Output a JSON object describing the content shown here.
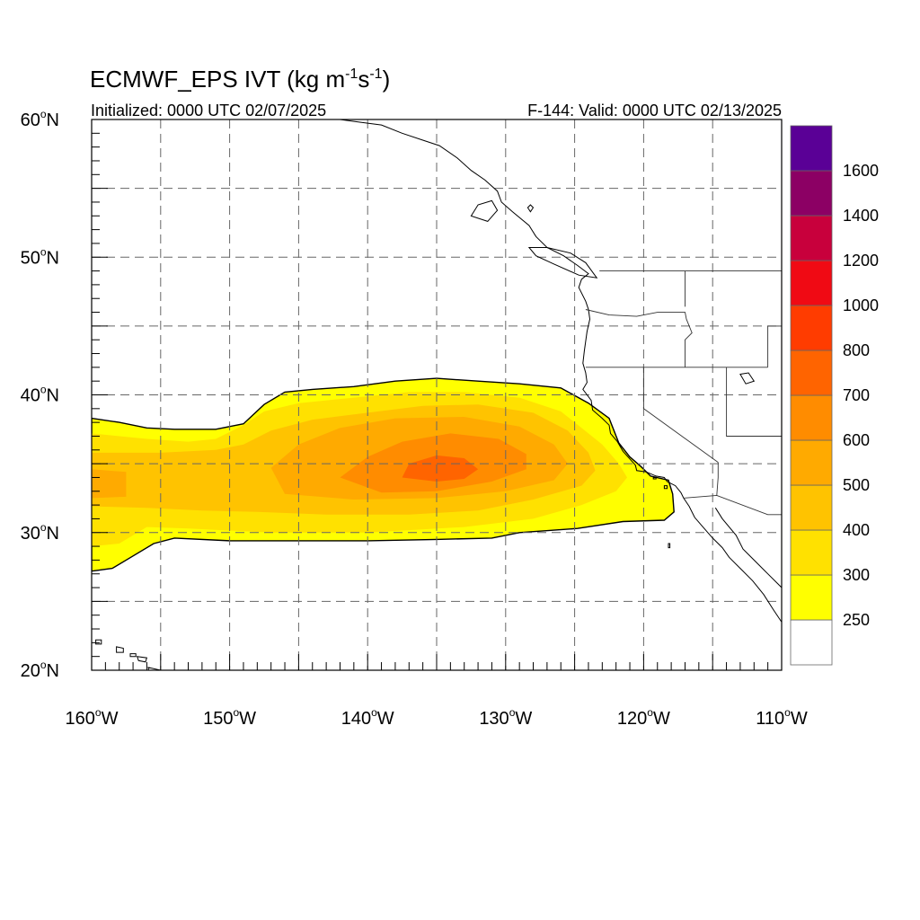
{
  "title": {
    "prefix": "ECMWF_EPS IVT (kg m",
    "exp1": "-1",
    "mid": "s",
    "exp2": "-1",
    "suffix": ")"
  },
  "initialized": "Initialized: 0000 UTC 02/07/2025",
  "valid": "F-144: Valid: 0000 UTC 02/13/2025",
  "map": {
    "lon_range": [
      -160,
      -110
    ],
    "lat_range": [
      20,
      60
    ],
    "gridlines": "dashed",
    "lat_labels": [
      {
        "value": 60,
        "num": "60",
        "dir": "N"
      },
      {
        "value": 50,
        "num": "50",
        "dir": "N"
      },
      {
        "value": 40,
        "num": "40",
        "dir": "N"
      },
      {
        "value": 30,
        "num": "30",
        "dir": "N"
      },
      {
        "value": 20,
        "num": "20",
        "dir": "N"
      }
    ],
    "lon_labels": [
      {
        "value": -160,
        "num": "160",
        "dir": "W"
      },
      {
        "value": -150,
        "num": "150",
        "dir": "W"
      },
      {
        "value": -140,
        "num": "140",
        "dir": "W"
      },
      {
        "value": -130,
        "num": "130",
        "dir": "W"
      },
      {
        "value": -120,
        "num": "120",
        "dir": "W"
      },
      {
        "value": -110,
        "num": "110",
        "dir": "W"
      }
    ]
  },
  "colorbar": {
    "position": "right",
    "levels": [
      {
        "label": "250",
        "color": "#ffff00"
      },
      {
        "label": "300",
        "color": "#ffe100"
      },
      {
        "label": "400",
        "color": "#ffc300"
      },
      {
        "label": "500",
        "color": "#ffaa00"
      },
      {
        "label": "600",
        "color": "#ff8c00"
      },
      {
        "label": "700",
        "color": "#ff6400"
      },
      {
        "label": "800",
        "color": "#ff3c00"
      },
      {
        "label": "1000",
        "color": "#f00a14"
      },
      {
        "label": "1200",
        "color": "#c8003c"
      },
      {
        "label": "1400",
        "color": "#8c0064"
      },
      {
        "label": "1600",
        "color": "#5a0096"
      }
    ],
    "below_first_color": "#ffffff"
  },
  "ivt_contours": [
    {
      "color": "#ffff00",
      "points": [
        [
          -160,
          38.3
        ],
        [
          -158,
          38.0
        ],
        [
          -156,
          37.6
        ],
        [
          -154,
          37.5
        ],
        [
          -151,
          37.5
        ],
        [
          -149,
          37.9
        ],
        [
          -147.5,
          39.3
        ],
        [
          -146,
          40.2
        ],
        [
          -144,
          40.4
        ],
        [
          -141,
          40.6
        ],
        [
          -138,
          41.0
        ],
        [
          -135,
          41.2
        ],
        [
          -132,
          41.0
        ],
        [
          -129,
          40.8
        ],
        [
          -126,
          40.5
        ],
        [
          -124,
          39.4
        ],
        [
          -122.5,
          38.3
        ],
        [
          -121.8,
          36.5
        ],
        [
          -121.0,
          35.5
        ],
        [
          -120.2,
          34.8
        ],
        [
          -119.5,
          34.1
        ],
        [
          -118.2,
          33.8
        ],
        [
          -117.9,
          32.8
        ],
        [
          -117.8,
          31.5
        ],
        [
          -118.5,
          30.9
        ],
        [
          -121.5,
          30.8
        ],
        [
          -124.8,
          30.3
        ],
        [
          -129,
          30.0
        ],
        [
          -131,
          29.6
        ],
        [
          -135,
          29.5
        ],
        [
          -140,
          29.4
        ],
        [
          -145,
          29.4
        ],
        [
          -150,
          29.4
        ],
        [
          -154,
          29.6
        ],
        [
          -155.5,
          29.2
        ],
        [
          -157,
          28.3
        ],
        [
          -158.5,
          27.4
        ],
        [
          -160,
          27.2
        ]
      ]
    },
    {
      "color": "#ffe100",
      "points": [
        [
          -160,
          37.2
        ],
        [
          -156,
          36.8
        ],
        [
          -153,
          36.6
        ],
        [
          -151,
          36.8
        ],
        [
          -149,
          37.8
        ],
        [
          -147.5,
          38.8
        ],
        [
          -145,
          39.4
        ],
        [
          -141,
          39.8
        ],
        [
          -137,
          40.2
        ],
        [
          -133,
          40.2
        ],
        [
          -129,
          39.8
        ],
        [
          -126,
          38.8
        ],
        [
          -124.5,
          37.6
        ],
        [
          -123,
          36.4
        ],
        [
          -121.8,
          35.0
        ],
        [
          -121.2,
          34.0
        ],
        [
          -122,
          33.0
        ],
        [
          -124.5,
          32.0
        ],
        [
          -128,
          31.0
        ],
        [
          -133,
          30.4
        ],
        [
          -140,
          30.0
        ],
        [
          -147,
          30.0
        ],
        [
          -153,
          30.3
        ],
        [
          -156,
          30.4
        ],
        [
          -158,
          29.2
        ],
        [
          -160,
          29.0
        ]
      ]
    },
    {
      "color": "#ffc300",
      "points": [
        [
          -160,
          35.8
        ],
        [
          -155,
          35.8
        ],
        [
          -151,
          36.0
        ],
        [
          -149,
          36.4
        ],
        [
          -147,
          37.4
        ],
        [
          -144,
          38.2
        ],
        [
          -140,
          38.7
        ],
        [
          -136,
          39.2
        ],
        [
          -132,
          39.3
        ],
        [
          -128,
          38.7
        ],
        [
          -125.5,
          37.4
        ],
        [
          -124,
          35.8
        ],
        [
          -123.5,
          34.5
        ],
        [
          -124.5,
          33.4
        ],
        [
          -128,
          32.4
        ],
        [
          -132,
          31.6
        ],
        [
          -137,
          31.3
        ],
        [
          -143,
          31.3
        ],
        [
          -148,
          31.5
        ],
        [
          -152,
          31.6
        ],
        [
          -156,
          31.8
        ],
        [
          -160,
          31.9
        ]
      ]
    },
    {
      "color": "#ffaa00",
      "points": [
        [
          -160,
          34.6
        ],
        [
          -157.5,
          34.4
        ],
        [
          -157.5,
          32.6
        ],
        [
          -160,
          32.5
        ]
      ]
    },
    {
      "color": "#ffaa00",
      "points": [
        [
          -147,
          34.7
        ],
        [
          -145,
          36.4
        ],
        [
          -142,
          37.6
        ],
        [
          -138,
          38.3
        ],
        [
          -133,
          38.4
        ],
        [
          -129,
          37.7
        ],
        [
          -126.5,
          36.4
        ],
        [
          -125.5,
          35.0
        ],
        [
          -126.5,
          33.8
        ],
        [
          -130,
          33.0
        ],
        [
          -135,
          32.5
        ],
        [
          -141,
          32.4
        ],
        [
          -146,
          32.8
        ]
      ]
    },
    {
      "color": "#ff8c00",
      "points": [
        [
          -142,
          34.0
        ],
        [
          -140,
          35.5
        ],
        [
          -137.5,
          36.6
        ],
        [
          -134,
          37.2
        ],
        [
          -130.5,
          36.8
        ],
        [
          -128.5,
          35.7
        ],
        [
          -128.5,
          34.6
        ],
        [
          -131,
          33.7
        ],
        [
          -135,
          33.0
        ],
        [
          -139,
          32.9
        ]
      ]
    },
    {
      "color": "#ff6400",
      "points": [
        [
          -137.5,
          34.0
        ],
        [
          -137,
          35.0
        ],
        [
          -135,
          35.6
        ],
        [
          -133,
          35.4
        ],
        [
          -132,
          34.6
        ],
        [
          -133,
          33.9
        ],
        [
          -135,
          33.7
        ]
      ]
    }
  ],
  "boundaries": {
    "coast_conus": [
      [
        -124.5,
        48.4
      ],
      [
        -124.7,
        47.8
      ],
      [
        -124.2,
        46.8
      ],
      [
        -124.0,
        46.2
      ],
      [
        -123.9,
        45.5
      ],
      [
        -124.1,
        44.6
      ],
      [
        -124.3,
        43.2
      ],
      [
        -124.4,
        42.3
      ],
      [
        -124.2,
        41.6
      ],
      [
        -124.1,
        40.9
      ],
      [
        -124.4,
        40.4
      ],
      [
        -123.8,
        39.6
      ],
      [
        -123.7,
        38.9
      ],
      [
        -123.0,
        38.3
      ],
      [
        -122.5,
        37.8
      ],
      [
        -122.4,
        37.2
      ],
      [
        -121.9,
        36.6
      ],
      [
        -121.5,
        35.9
      ],
      [
        -120.6,
        34.9
      ],
      [
        -120.5,
        34.5
      ],
      [
        -119.8,
        34.4
      ],
      [
        -119.1,
        34.1
      ],
      [
        -118.5,
        34.0
      ],
      [
        -118.3,
        33.7
      ],
      [
        -117.7,
        33.4
      ],
      [
        -117.3,
        32.9
      ],
      [
        -117.1,
        32.5
      ],
      [
        -116.7,
        31.9
      ],
      [
        -116.3,
        31.1
      ],
      [
        -115.7,
        30.4
      ],
      [
        -115.0,
        29.6
      ],
      [
        -114.3,
        28.9
      ],
      [
        -113.8,
        28.2
      ],
      [
        -113.0,
        27.4
      ],
      [
        -112.1,
        26.5
      ],
      [
        -111.3,
        25.5
      ],
      [
        -110.6,
        24.4
      ],
      [
        -110.0,
        23.5
      ]
    ],
    "gulf_west": [
      [
        -114.8,
        31.8
      ],
      [
        -114.3,
        31.0
      ],
      [
        -113.3,
        29.8
      ],
      [
        -112.8,
        28.8
      ],
      [
        -112.0,
        28.0
      ],
      [
        -111.0,
        27.0
      ],
      [
        -110.0,
        26.0
      ]
    ],
    "bc_alaska_coast": [
      [
        -124.5,
        48.4
      ],
      [
        -124.0,
        48.8
      ],
      [
        -124.8,
        49.4
      ],
      [
        -125.8,
        50.1
      ],
      [
        -127.0,
        50.7
      ],
      [
        -127.8,
        51.5
      ],
      [
        -128.3,
        52.3
      ],
      [
        -129.5,
        53.3
      ],
      [
        -130.3,
        54.0
      ],
      [
        -130.6,
        54.8
      ],
      [
        -131.5,
        55.6
      ],
      [
        -132.5,
        56.3
      ],
      [
        -133.5,
        57.2
      ],
      [
        -134.8,
        58.1
      ],
      [
        -136.0,
        58.5
      ],
      [
        -137.5,
        59.0
      ],
      [
        -139.0,
        59.6
      ],
      [
        -140.5,
        59.8
      ],
      [
        -142.0,
        60.0
      ]
    ],
    "borders": [
      [
        [
          -123.2,
          49.0
        ],
        [
          -110,
          49.0
        ]
      ],
      [
        [
          -124.2,
          46.2
        ],
        [
          -122.5,
          45.8
        ],
        [
          -120.5,
          45.7
        ],
        [
          -119.0,
          46.0
        ],
        [
          -117.0,
          46.0
        ],
        [
          -116.9,
          45.5
        ],
        [
          -116.5,
          44.5
        ],
        [
          -117.0,
          44.0
        ],
        [
          -117.0,
          42.0
        ]
      ],
      [
        [
          -117.0,
          49.0
        ],
        [
          -117.0,
          46.4
        ]
      ],
      [
        [
          -124.2,
          42.0
        ],
        [
          -111.0,
          42.0
        ]
      ],
      [
        [
          -111.0,
          42.0
        ],
        [
          -111.0,
          45.0
        ],
        [
          -110,
          45.0
        ]
      ],
      [
        [
          -120.0,
          42.0
        ],
        [
          -120.0,
          39.0
        ],
        [
          -114.6,
          35.1
        ]
      ],
      [
        [
          -114.0,
          42.0
        ],
        [
          -114.0,
          37.0
        ],
        [
          -110,
          37.0
        ]
      ],
      [
        [
          -114.6,
          35.1
        ],
        [
          -114.6,
          34.0
        ],
        [
          -114.7,
          32.7
        ]
      ],
      [
        [
          -117.1,
          32.5
        ],
        [
          -114.7,
          32.7
        ],
        [
          -111.0,
          31.3
        ],
        [
          -110,
          31.3
        ]
      ]
    ],
    "islands": [
      [
        [
          -159.7,
          22.2
        ],
        [
          -159.3,
          22.2
        ],
        [
          -159.3,
          21.9
        ],
        [
          -159.7,
          21.9
        ],
        [
          -159.7,
          22.2
        ]
      ],
      [
        [
          -158.2,
          21.7
        ],
        [
          -157.7,
          21.6
        ],
        [
          -157.7,
          21.3
        ],
        [
          -158.2,
          21.3
        ],
        [
          -158.2,
          21.7
        ]
      ],
      [
        [
          -157.2,
          21.2
        ],
        [
          -156.8,
          21.2
        ],
        [
          -156.8,
          21.0
        ],
        [
          -157.2,
          21.0
        ],
        [
          -157.2,
          21.2
        ]
      ],
      [
        [
          -156.7,
          21.0
        ],
        [
          -156.0,
          20.9
        ],
        [
          -156.1,
          20.6
        ],
        [
          -156.6,
          20.7
        ],
        [
          -156.7,
          21.0
        ]
      ],
      [
        [
          -155.9,
          20.2
        ],
        [
          -155.0,
          20.0
        ],
        [
          -155.0,
          19.5
        ],
        [
          -155.8,
          19.6
        ],
        [
          -155.9,
          20.2
        ]
      ],
      [
        [
          -128.2,
          53.8
        ],
        [
          -128.0,
          53.6
        ],
        [
          -128.2,
          53.3
        ],
        [
          -128.4,
          53.6
        ],
        [
          -128.2,
          53.8
        ]
      ],
      [
        [
          -131.0,
          54.1
        ],
        [
          -130.6,
          53.4
        ],
        [
          -131.3,
          52.6
        ],
        [
          -132.5,
          53.0
        ],
        [
          -132.0,
          53.8
        ],
        [
          -131.0,
          54.1
        ]
      ],
      [
        [
          -125.3,
          50.3
        ],
        [
          -124.2,
          49.6
        ],
        [
          -123.4,
          48.5
        ],
        [
          -124.7,
          48.7
        ],
        [
          -126.5,
          49.5
        ],
        [
          -127.8,
          50.1
        ],
        [
          -128.3,
          50.7
        ],
        [
          -127.0,
          50.7
        ],
        [
          -125.3,
          50.3
        ]
      ],
      [
        [
          -119.3,
          34.0
        ],
        [
          -119.1,
          34.0
        ],
        [
          -119.1,
          33.9
        ],
        [
          -119.3,
          33.9
        ],
        [
          -119.3,
          34.0
        ]
      ],
      [
        [
          -118.5,
          33.4
        ],
        [
          -118.3,
          33.4
        ],
        [
          -118.3,
          33.2
        ],
        [
          -118.5,
          33.2
        ],
        [
          -118.5,
          33.4
        ]
      ],
      [
        [
          -118.2,
          29.2
        ],
        [
          -118.1,
          29.2
        ],
        [
          -118.1,
          28.9
        ],
        [
          -118.2,
          28.9
        ],
        [
          -118.2,
          29.2
        ]
      ]
    ],
    "lakes": [
      [
        [
          -113.0,
          41.5
        ],
        [
          -112.4,
          41.6
        ],
        [
          -112.0,
          41.0
        ],
        [
          -112.6,
          40.8
        ],
        [
          -113.0,
          41.5
        ]
      ]
    ]
  }
}
